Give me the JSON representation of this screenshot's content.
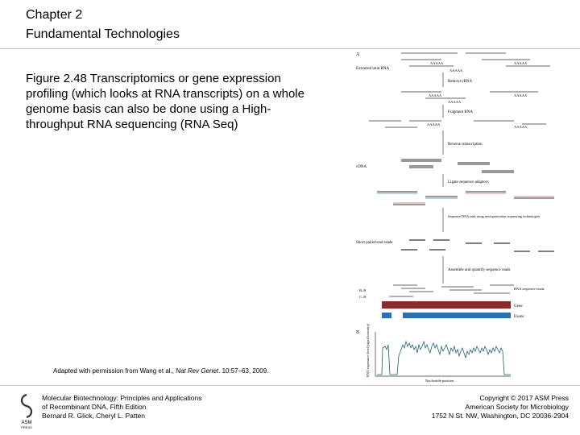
{
  "header": {
    "line1": "Chapter 2",
    "line2": "Fundamental Technologies"
  },
  "caption": "Figure 2.48 Transcriptomics or gene expression profiling (which looks at RNA transcripts) on a whole genome basis can also be done using a High-throughput RNA sequencing (RNA Seq)",
  "credit": {
    "prefix": "Adapted with permission from Wang et al., ",
    "journal": "Nat Rev Genet",
    "suffix": ". 10:57–63, 2009."
  },
  "footer": {
    "book": [
      "Molecular Biotechnology: Principles and Applications",
      "of Recombinant DNA, Fifth Edition",
      "Bernard R. Glick, Cheryl L. Patten"
    ],
    "copyright": [
      "Copyright © 2017 ASM Press",
      "American Society for Microbiology",
      "1752 N St. NW, Washington, DC 20036-2904"
    ],
    "logo": {
      "line1": "ASM",
      "line2": "PRESS"
    }
  },
  "figure": {
    "panel_a": "A",
    "panel_b": "B",
    "labels": {
      "extracted": "Extracted total RNA",
      "polyA": "AAAAA",
      "remove": "Remove rRNA",
      "fragment": "Fragment RNA",
      "rt": "Reverse transcription",
      "cdna": "cDNA",
      "ligate": "Ligate sequence adaptors",
      "sequence": "Sequence DNA ends using next-generation sequencing technologies",
      "reads": "Short paired-end reads",
      "assemble": "Assemble and quantify sequence reads",
      "rna_reads": "RNA sequence reads",
      "gene": "Gene",
      "exons": "Exons",
      "bb": "B–B",
      "cb": "C–B",
      "yaxis": "RNA expression level (signal intensity)",
      "xaxis": "Nucleotide position"
    },
    "colors": {
      "gene": "#8b2a2a",
      "exons": "#2a6fb0",
      "trace": "#1f5f6f",
      "read_pink": "#d98a9a",
      "read_blue": "#7aa7c7"
    }
  }
}
